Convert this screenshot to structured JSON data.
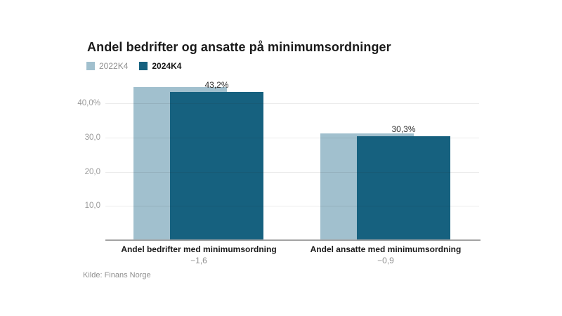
{
  "title": "Andel bedrifter og ansatte på minimumsordninger",
  "legend": {
    "items": [
      {
        "label": "2022K4",
        "color": "#a1c0ce"
      },
      {
        "label": "2024K4",
        "color": "#16617f"
      }
    ]
  },
  "source": "Kilde: Finans Norge",
  "colors": {
    "series_2022": "#a1c0ce",
    "series_2024": "#16617f",
    "axis_line": "#a3a3a3",
    "grid_line": "#ebebeb",
    "muted_text": "#8f8f8f",
    "dark_text": "#1a1a1a"
  },
  "chart_data": {
    "type": "bar",
    "title": "Andel bedrifter og ansatte på minimumsordninger",
    "categories": [
      "Andel bedrifter med minimumsordning",
      "Andel ansatte med minimumsordning"
    ],
    "category_sublabels": [
      "−1,6",
      "−0,9"
    ],
    "series": [
      {
        "name": "2022K4",
        "color": "#a1c0ce",
        "values": [
          44.8,
          31.2
        ],
        "value_labels": [
          "",
          ""
        ]
      },
      {
        "name": "2024K4",
        "color": "#16617f",
        "values": [
          43.2,
          30.3
        ],
        "value_labels": [
          "43,2%",
          "30,3%"
        ]
      }
    ],
    "yticks": [
      {
        "value": 10,
        "label": "10,0"
      },
      {
        "value": 20,
        "label": "20,0"
      },
      {
        "value": 30,
        "label": "30,0"
      },
      {
        "value": 40,
        "label": "40,0%"
      }
    ],
    "ylim": [
      0,
      46
    ],
    "unit": "%",
    "grid": true,
    "legend_position": "top-left",
    "xlabel": "",
    "ylabel": ""
  }
}
